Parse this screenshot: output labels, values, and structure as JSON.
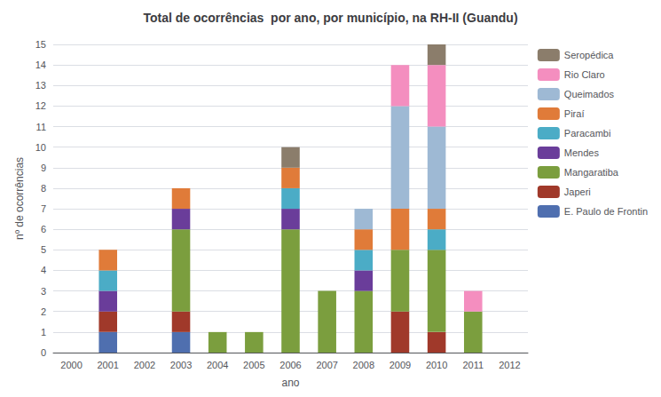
{
  "chart_data": {
    "type": "bar",
    "stacked": true,
    "title": "Total de ocorrências  por ano, por município, na RH-II (Guandu)",
    "x_label": "ano",
    "y_label": "nº de ocorrências",
    "categories": [
      "2000",
      "2001",
      "2002",
      "2003",
      "2004",
      "2005",
      "2006",
      "2007",
      "2008",
      "2009",
      "2010",
      "2011",
      "2012"
    ],
    "series": [
      {
        "name": "E. Paulo de Frontin",
        "color": "#4F6FAF",
        "values": [
          0,
          1,
          0,
          1,
          0,
          0,
          0,
          0,
          0,
          0,
          0,
          0,
          0
        ]
      },
      {
        "name": "Japeri",
        "color": "#A0392A",
        "values": [
          0,
          1,
          0,
          1,
          0,
          0,
          0,
          0,
          0,
          2,
          1,
          0,
          0
        ]
      },
      {
        "name": "Mangaratiba",
        "color": "#7B9E3E",
        "values": [
          0,
          0,
          0,
          4,
          1,
          1,
          6,
          3,
          3,
          3,
          4,
          2,
          0
        ]
      },
      {
        "name": "Mendes",
        "color": "#6A3D9A",
        "values": [
          0,
          1,
          0,
          1,
          0,
          0,
          1,
          0,
          1,
          0,
          0,
          0,
          0
        ]
      },
      {
        "name": "Paracambi",
        "color": "#4BACC6",
        "values": [
          0,
          1,
          0,
          0,
          0,
          0,
          1,
          0,
          1,
          0,
          1,
          0,
          0
        ]
      },
      {
        "name": "Piraí",
        "color": "#E07B39",
        "values": [
          0,
          1,
          0,
          1,
          0,
          0,
          1,
          0,
          1,
          2,
          1,
          0,
          0
        ]
      },
      {
        "name": "Queimados",
        "color": "#9EB9D4",
        "values": [
          0,
          0,
          0,
          0,
          0,
          0,
          0,
          0,
          1,
          5,
          4,
          0,
          0
        ]
      },
      {
        "name": "Rio Claro",
        "color": "#F48EBF",
        "values": [
          0,
          0,
          0,
          0,
          0,
          0,
          0,
          0,
          0,
          2,
          3,
          1,
          0
        ]
      },
      {
        "name": "Seropédica",
        "color": "#8B7D6B",
        "values": [
          0,
          0,
          0,
          0,
          0,
          0,
          1,
          0,
          0,
          0,
          1,
          0,
          0
        ]
      }
    ],
    "ylim": [
      0,
      15
    ],
    "yticks": [
      0,
      1,
      2,
      3,
      4,
      5,
      6,
      7,
      8,
      9,
      10,
      11,
      12,
      13,
      14,
      15
    ],
    "grid": true,
    "legend": "right"
  }
}
